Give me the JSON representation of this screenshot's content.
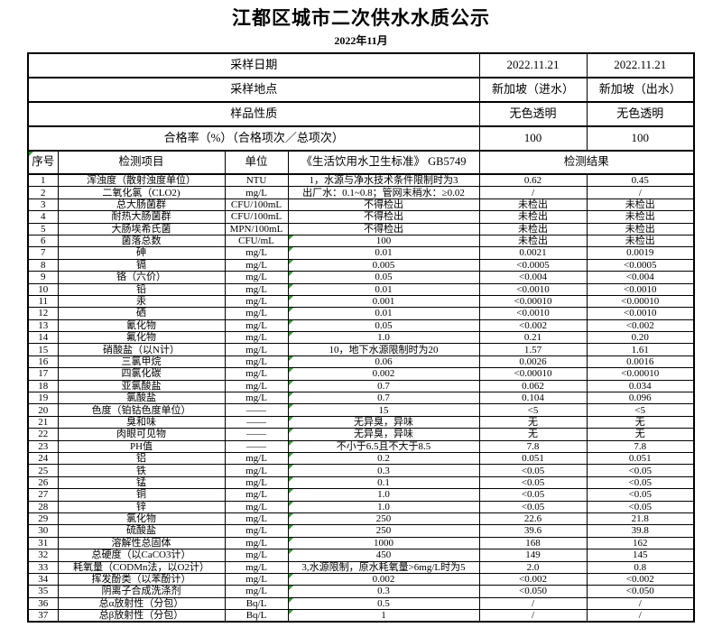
{
  "page": {
    "title": "江都区城市二次供水水质公示",
    "subtitle": "2022年11月"
  },
  "colors": {
    "border": "#000000",
    "background": "#ffffff",
    "flag_triangle": "#2e9e2e"
  },
  "info_rows": [
    {
      "label": "采样日期",
      "in": "2022.11.21",
      "out": "2022.11.21"
    },
    {
      "label": "采样地点",
      "in": "新加坡（进水）",
      "out": "新加坡（出水）"
    },
    {
      "label": "样品性质",
      "in": "无色透明",
      "out": "无色透明"
    },
    {
      "label": "合格率（%）（合格项次／总项次）",
      "in": "100",
      "out": "100"
    }
  ],
  "columns": {
    "no": "序号",
    "item": "检测项目",
    "unit": "单位",
    "standard": "《生活饮用水卫生标准》 GB5749",
    "result": "检测结果"
  },
  "rows": [
    {
      "no": "1",
      "item": "浑浊度（散射浊度单位）",
      "unit": "NTU",
      "standard": "1，水源与净水技术条件限制时为3",
      "in": "0.62",
      "out": "0.45",
      "flag": false
    },
    {
      "no": "2",
      "item": "二氧化氯（CLO2)",
      "unit": "mg/L",
      "standard": "出厂水：0.1~0.8；管网末稍水：≥0.02",
      "in": "/",
      "out": "/",
      "flag": false
    },
    {
      "no": "3",
      "item": "总大肠菌群",
      "unit": "CFU/100mL",
      "standard": "不得检出",
      "in": "未检出",
      "out": "未检出",
      "flag": false
    },
    {
      "no": "4",
      "item": "耐热大肠菌群",
      "unit": "CFU/100mL",
      "standard": "不得检出",
      "in": "未检出",
      "out": "未检出",
      "flag": false
    },
    {
      "no": "5",
      "item": "大肠埃希氏菌",
      "unit": "MPN/100mL",
      "standard": "不得检出",
      "in": "未检出",
      "out": "未检出",
      "flag": false
    },
    {
      "no": "6",
      "item": "菌落总数",
      "unit": "CFU/mL",
      "standard": "100",
      "in": "未检出",
      "out": "未检出",
      "flag": true
    },
    {
      "no": "7",
      "item": "砷",
      "unit": "mg/L",
      "standard": "0.01",
      "in": "0.0021",
      "out": "0.0019",
      "flag": true
    },
    {
      "no": "8",
      "item": "镉",
      "unit": "mg/L",
      "standard": "0.005",
      "in": "<0.0005",
      "out": "<0.0005",
      "flag": true
    },
    {
      "no": "9",
      "item": "铬（六价）",
      "unit": "mg/L",
      "standard": "0.05",
      "in": "<0.004",
      "out": "<0.004",
      "flag": true
    },
    {
      "no": "10",
      "item": "铅",
      "unit": "mg/L",
      "standard": "0.01",
      "in": "<0.0010",
      "out": "<0.0010",
      "flag": true
    },
    {
      "no": "11",
      "item": "汞",
      "unit": "mg/L",
      "standard": "0.001",
      "in": "<0.00010",
      "out": "<0.00010",
      "flag": true
    },
    {
      "no": "12",
      "item": "硒",
      "unit": "mg/L",
      "standard": "0.01",
      "in": "<0.0010",
      "out": "<0.0010",
      "flag": true
    },
    {
      "no": "13",
      "item": "氰化物",
      "unit": "mg/L",
      "standard": "0.05",
      "in": "<0.002",
      "out": "<0.002",
      "flag": true
    },
    {
      "no": "14",
      "item": "氟化物",
      "unit": "mg/L",
      "standard": "1.0",
      "in": "0.21",
      "out": "0.20",
      "flag": true
    },
    {
      "no": "15",
      "item": "硝酸盐（以N计）",
      "unit": "mg/L",
      "standard": "10，地下水源限制时为20",
      "in": "1.57",
      "out": "1.61",
      "flag": false
    },
    {
      "no": "16",
      "item": "三氯甲烷",
      "unit": "mg/L",
      "standard": "0.06",
      "in": "0.0026",
      "out": "0.0016",
      "flag": true
    },
    {
      "no": "17",
      "item": "四氯化碳",
      "unit": "mg/L",
      "standard": "0.002",
      "in": "<0.00010",
      "out": "<0.00010",
      "flag": true
    },
    {
      "no": "18",
      "item": "亚氯酸盐",
      "unit": "mg/L",
      "standard": "0.7",
      "in": "0.062",
      "out": "0.034",
      "flag": true
    },
    {
      "no": "19",
      "item": "氯酸盐",
      "unit": "mg/L",
      "standard": "0.7",
      "in": "0.104",
      "out": "0.096",
      "flag": true
    },
    {
      "no": "20",
      "item": "色度（铂钴色度单位）",
      "unit": "——",
      "standard": "15",
      "in": "<5",
      "out": "<5",
      "flag": true
    },
    {
      "no": "21",
      "item": "臭和味",
      "unit": "——",
      "standard": "无异臭，异味",
      "in": "无",
      "out": "无",
      "flag": true
    },
    {
      "no": "22",
      "item": "肉眼可见物",
      "unit": "——",
      "standard": "无异臭，异味",
      "in": "无",
      "out": "无",
      "flag": true
    },
    {
      "no": "23",
      "item": "PH值",
      "unit": "——",
      "standard": "不小于6.5且不大于8.5",
      "in": "7.8",
      "out": "7.8",
      "flag": true
    },
    {
      "no": "24",
      "item": "铝",
      "unit": "mg/L",
      "standard": "0.2",
      "in": "0.051",
      "out": "0.051",
      "flag": true
    },
    {
      "no": "25",
      "item": "铁",
      "unit": "mg/L",
      "standard": "0.3",
      "in": "<0.05",
      "out": "<0.05",
      "flag": true
    },
    {
      "no": "26",
      "item": "锰",
      "unit": "mg/L",
      "standard": "0.1",
      "in": "<0.05",
      "out": "<0.05",
      "flag": true
    },
    {
      "no": "27",
      "item": "铜",
      "unit": "mg/L",
      "standard": "1.0",
      "in": "<0.05",
      "out": "<0.05",
      "flag": true
    },
    {
      "no": "28",
      "item": "锌",
      "unit": "mg/L",
      "standard": "1.0",
      "in": "<0.05",
      "out": "<0.05",
      "flag": true
    },
    {
      "no": "29",
      "item": "氯化物",
      "unit": "mg/L",
      "standard": "250",
      "in": "22.6",
      "out": "21.8",
      "flag": true
    },
    {
      "no": "30",
      "item": "硫酸盐",
      "unit": "mg/L",
      "standard": "250",
      "in": "39.6",
      "out": "39.8",
      "flag": true
    },
    {
      "no": "31",
      "item": "溶解性总固体",
      "unit": "mg/L",
      "standard": "1000",
      "in": "168",
      "out": "162",
      "flag": true
    },
    {
      "no": "32",
      "item": "总硬度（以CaCO3计）",
      "unit": "mg/L",
      "standard": "450",
      "in": "149",
      "out": "145",
      "flag": true
    },
    {
      "no": "33",
      "item": "耗氧量（CODMn法，以O2计）",
      "unit": "mg/L",
      "standard": "3,水源限制，原水耗氧量>6mg/L时为5",
      "in": "2.0",
      "out": "0.8",
      "flag": false
    },
    {
      "no": "34",
      "item": "挥发酚类（以苯酚计）",
      "unit": "mg/L",
      "standard": "0.002",
      "in": "<0.002",
      "out": "<0.002",
      "flag": true
    },
    {
      "no": "35",
      "item": "阴离子合成洗涤剂",
      "unit": "mg/L",
      "standard": "0.3",
      "in": "<0.050",
      "out": "<0.050",
      "flag": true
    },
    {
      "no": "36",
      "item": "总α放射性（分包）",
      "unit": "Bq/L",
      "standard": "0.5",
      "in": "/",
      "out": "/",
      "flag": true
    },
    {
      "no": "37",
      "item": "总β放射性（分包）",
      "unit": "Bq/L",
      "standard": "1",
      "in": "/",
      "out": "/",
      "flag": true
    }
  ]
}
